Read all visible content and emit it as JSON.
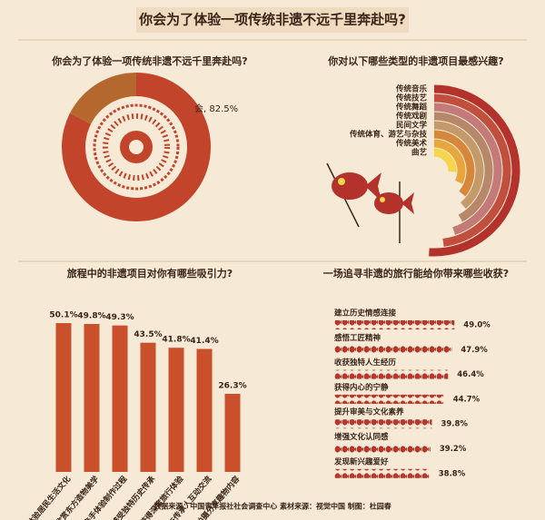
{
  "title": "你会为了体验一项传统非遗不远千里奔赴吗?",
  "footer": "数据来源：中国青年报社社会调查中心  素材来源：视觉中国  制图：杜园春",
  "chart_data": [
    {
      "type": "pie",
      "title": "你会为了体验一项传统非遗不远千里奔赴吗?",
      "values": [
        82.5,
        17.5
      ],
      "value_labels": [
        "会, 82.5%",
        null
      ],
      "colors": [
        "#c2442b",
        "#b5682e"
      ]
    },
    {
      "type": "radial_bar",
      "title": "你对以下哪些类型的非遗项目最感兴趣?",
      "categories": [
        "传统音乐",
        "传统技艺",
        "传统舞蹈",
        "传统戏剧",
        "民间文学",
        "传统体育、游艺与杂技",
        "传统美术",
        "曲艺"
      ],
      "values": [
        51,
        48,
        45,
        42,
        39,
        36,
        32,
        26
      ],
      "rlim": [
        0,
        100
      ],
      "colors": [
        "#b3322b",
        "#c0503d",
        "#c47a78",
        "#b7876a",
        "#c49a6a",
        "#d7873a",
        "#e8a63e",
        "#f5d54b"
      ]
    },
    {
      "type": "bar",
      "title": "旅程中的非遗项目对你有哪些吸引力?",
      "categories": [
        "体验居民生活文化",
        "欣赏东方造物美学",
        "亲手体验制作过程",
        "感受独特历史传承",
        "获得深度旅行体验",
        "与传承人互动交流",
        "拍摄分享趣物内容"
      ],
      "values": [
        50.1,
        49.8,
        49.3,
        43.5,
        41.8,
        41.4,
        26.3
      ],
      "value_labels": [
        "50.1%",
        "49.8%",
        "49.3%",
        "43.5%",
        "41.8%",
        "41.4%",
        "26.3%"
      ],
      "ylim": [
        0,
        55
      ],
      "color": "#c9502b"
    },
    {
      "type": "pictogram_bar",
      "title": "一场追寻非遗的旅行能给你带来哪些收获?",
      "categories": [
        "建立历史情感连接",
        "感悟工匠精神",
        "收获独特人生经历",
        "获得内心的宁静",
        "提升审美与文化素养",
        "增强文化认同感",
        "发现新兴趣爱好"
      ],
      "values": [
        49.0,
        47.9,
        46.4,
        44.7,
        39.8,
        39.2,
        38.8
      ],
      "value_labels": [
        "49.0%",
        "47.9%",
        "46.4%",
        "44.7%",
        "39.8%",
        "39.2%",
        "38.8%"
      ],
      "xlim": [
        0,
        50
      ],
      "color": "#b8352b"
    }
  ]
}
